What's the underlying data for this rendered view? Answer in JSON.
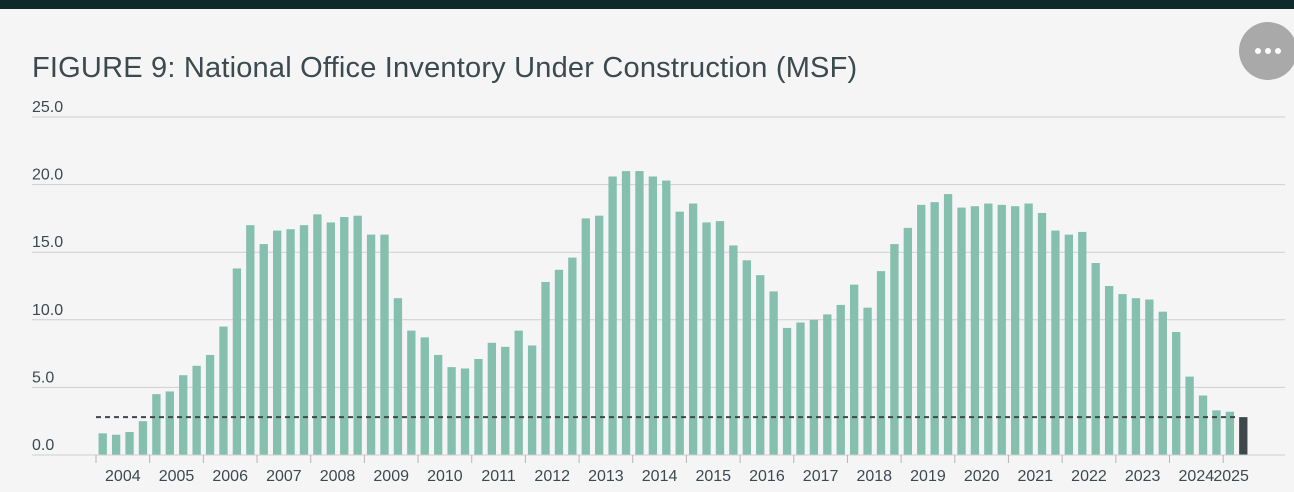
{
  "title": "FIGURE 9: National Office Inventory Under Construction (MSF)",
  "more_button_label": "More options",
  "colors": {
    "bar": "#85bfae",
    "highlight_bar": "#3e474b",
    "grid": "#cfcfcf",
    "dashed_line": "#3e474b"
  },
  "chart_data": {
    "type": "bar",
    "title": "FIGURE 9: National Office Inventory Under Construction (MSF)",
    "xlabel": "",
    "ylabel": "",
    "ylim": [
      0,
      25
    ],
    "yticks": [
      "0.0",
      "5.0",
      "10.0",
      "15.0",
      "20.0",
      "25.0"
    ],
    "grid": true,
    "legend": "none",
    "x_tick_labels": [
      "2004",
      "2005",
      "2006",
      "2007",
      "2008",
      "2009",
      "2010",
      "2011",
      "2012",
      "2013",
      "2014",
      "2015",
      "2016",
      "2017",
      "2018",
      "2019",
      "2020",
      "2021",
      "2022",
      "2023",
      "2024",
      "2025"
    ],
    "reference_line": {
      "value": 2.8,
      "style": "dashed"
    },
    "series": [
      {
        "values": [
          1.6,
          1.5,
          1.7,
          2.5,
          4.5,
          4.7,
          5.9,
          6.6,
          7.4,
          9.5,
          13.8,
          17.0,
          15.6,
          16.6,
          16.7,
          17.0,
          17.8,
          17.2,
          17.6,
          17.7,
          16.3,
          16.3,
          11.6,
          9.2,
          8.7,
          7.4,
          6.5,
          6.4,
          7.1,
          8.3,
          8.0,
          9.2,
          8.1,
          12.8,
          13.7,
          14.6,
          17.5,
          17.7,
          20.6,
          21.0,
          21.0,
          20.6,
          20.3,
          18.0,
          18.6,
          17.2,
          17.3,
          15.5,
          14.4,
          13.3,
          12.1,
          9.4,
          9.8,
          10.0,
          10.4,
          11.1,
          12.6,
          10.9,
          13.6,
          15.6,
          16.8,
          18.5,
          18.7,
          19.3,
          18.3,
          18.4,
          18.6,
          18.5,
          18.4,
          18.6,
          17.9,
          16.6,
          16.3,
          16.5,
          14.2,
          12.5,
          11.9,
          11.6,
          11.5,
          10.6,
          9.1,
          5.8,
          4.4,
          3.3,
          3.2,
          2.8
        ],
        "highlight_last": true
      }
    ]
  }
}
